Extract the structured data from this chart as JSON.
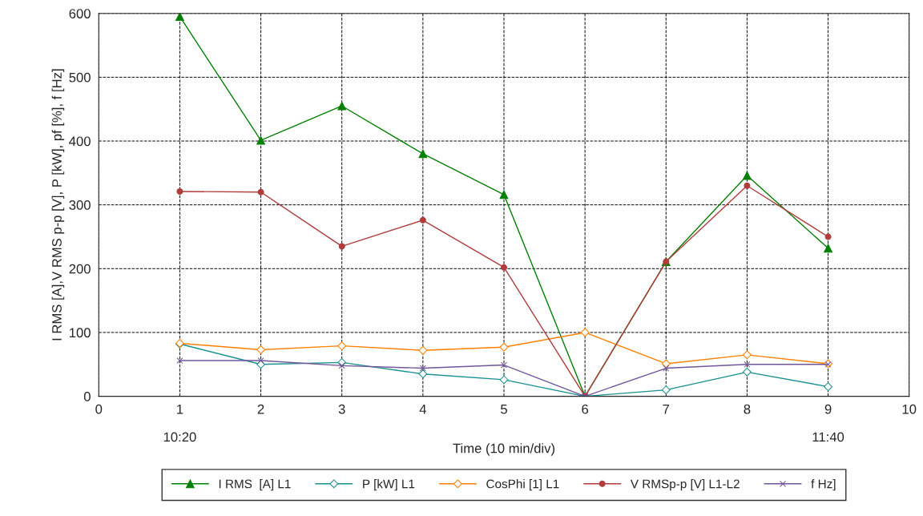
{
  "chart_data": {
    "type": "line",
    "xlabel": "Time (10 min/div)",
    "ylabel": "I RMS [A],V RMS p-p [V], P [kW], pf [%], f [Hz]",
    "x": [
      1,
      2,
      3,
      4,
      5,
      6,
      7,
      8,
      9
    ],
    "series": [
      {
        "name": "I RMS  [A] L1",
        "color": "#008000",
        "marker": "triangle",
        "values": [
          595,
          401,
          455,
          380,
          316,
          0,
          211,
          346,
          232
        ]
      },
      {
        "name": "P [kW] L1",
        "color": "#1a9090",
        "marker": "diamond",
        "values": [
          82,
          50,
          53,
          35,
          26,
          0,
          10,
          38,
          15
        ]
      },
      {
        "name": "CosPhi [1] L1",
        "color": "#ff8000",
        "marker": "diamond",
        "values": [
          83,
          73,
          79,
          72,
          77,
          100,
          51,
          65,
          51
        ]
      },
      {
        "name": "V RMSp-p [V] L1-L2",
        "color": "#b03c3c",
        "marker": "circle",
        "values": [
          321,
          320,
          235,
          276,
          202,
          0,
          211,
          330,
          250
        ]
      },
      {
        "name": "f Hz]",
        "color": "#70559a",
        "marker": "cross",
        "values": [
          56,
          56,
          48,
          44,
          49,
          0,
          44,
          50,
          50
        ]
      }
    ],
    "xlim": [
      0,
      10
    ],
    "xticks": [
      0,
      1,
      2,
      3,
      4,
      5,
      6,
      7,
      8,
      9,
      10
    ],
    "ylim": [
      0,
      600
    ],
    "yticks": [
      0,
      100,
      200,
      300,
      400,
      500,
      600
    ],
    "annotations": [
      "10:20",
      "11:40"
    ],
    "grid": true,
    "legend": "bottom",
    "line_style": "solid"
  }
}
